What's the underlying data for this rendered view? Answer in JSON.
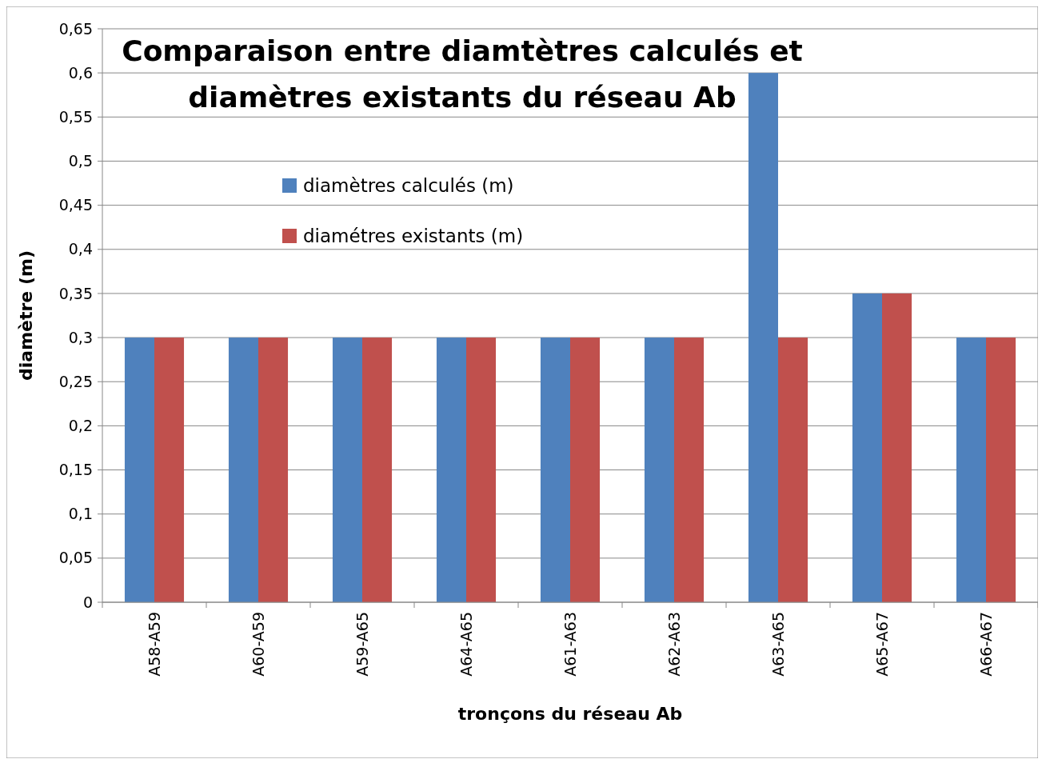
{
  "chart_data": {
    "type": "bar",
    "title": "Comparaison entre diamtètres calculés et diamètres existants du réseau Ab",
    "xlabel": "tronçons du réseau Ab",
    "ylabel": "diamètre (m)",
    "categories": [
      "A58-A59",
      "A60-A59",
      "A59-A65",
      "A64-A65",
      "A61-A63",
      "A62-A63",
      "A63-A65",
      "A65-A67",
      "A66-A67"
    ],
    "series": [
      {
        "name": "diamètres calculés (m)",
        "color": "#4f81bd",
        "values": [
          0.3,
          0.3,
          0.3,
          0.3,
          0.3,
          0.3,
          0.6,
          0.35,
          0.3
        ]
      },
      {
        "name": "diamétres existants (m)",
        "color": "#c0504d",
        "values": [
          0.3,
          0.3,
          0.3,
          0.3,
          0.3,
          0.3,
          0.3,
          0.35,
          0.3
        ]
      }
    ],
    "ylim": [
      0,
      0.65
    ],
    "yticks": [
      {
        "value": 0,
        "label": "0"
      },
      {
        "value": 0.05,
        "label": "0,05"
      },
      {
        "value": 0.1,
        "label": "0,1"
      },
      {
        "value": 0.15,
        "label": "0,15"
      },
      {
        "value": 0.2,
        "label": "0,2"
      },
      {
        "value": 0.25,
        "label": "0,25"
      },
      {
        "value": 0.3,
        "label": "0,3"
      },
      {
        "value": 0.35,
        "label": "0,35"
      },
      {
        "value": 0.4,
        "label": "0,4"
      },
      {
        "value": 0.45,
        "label": "0,45"
      },
      {
        "value": 0.5,
        "label": "0,5"
      },
      {
        "value": 0.55,
        "label": "0,55"
      },
      {
        "value": 0.6,
        "label": "0,6"
      },
      {
        "value": 0.65,
        "label": "0,65"
      }
    ],
    "grid": "y",
    "legend": "top"
  }
}
